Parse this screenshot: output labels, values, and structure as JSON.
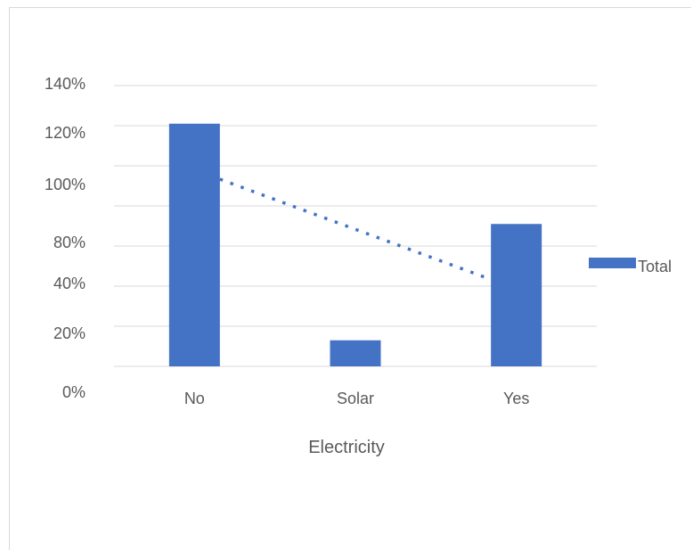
{
  "chart_data": {
    "type": "bar",
    "title": "",
    "xlabel": "Electricity",
    "ylabel": "",
    "categories": [
      "No",
      "Solar",
      "Yes"
    ],
    "series": [
      {
        "name": "Total",
        "values": [
          121,
          13,
          71
        ],
        "color": "#4472c4"
      }
    ],
    "y_tick_labels": [
      "0%",
      "20%",
      "40%",
      "80%",
      "100%",
      "120%",
      "140%"
    ],
    "ylim": [
      0,
      140
    ],
    "grid": true,
    "legend": "right",
    "trendline": {
      "type": "linear",
      "style": "dotted",
      "color": "#4472c4"
    }
  }
}
